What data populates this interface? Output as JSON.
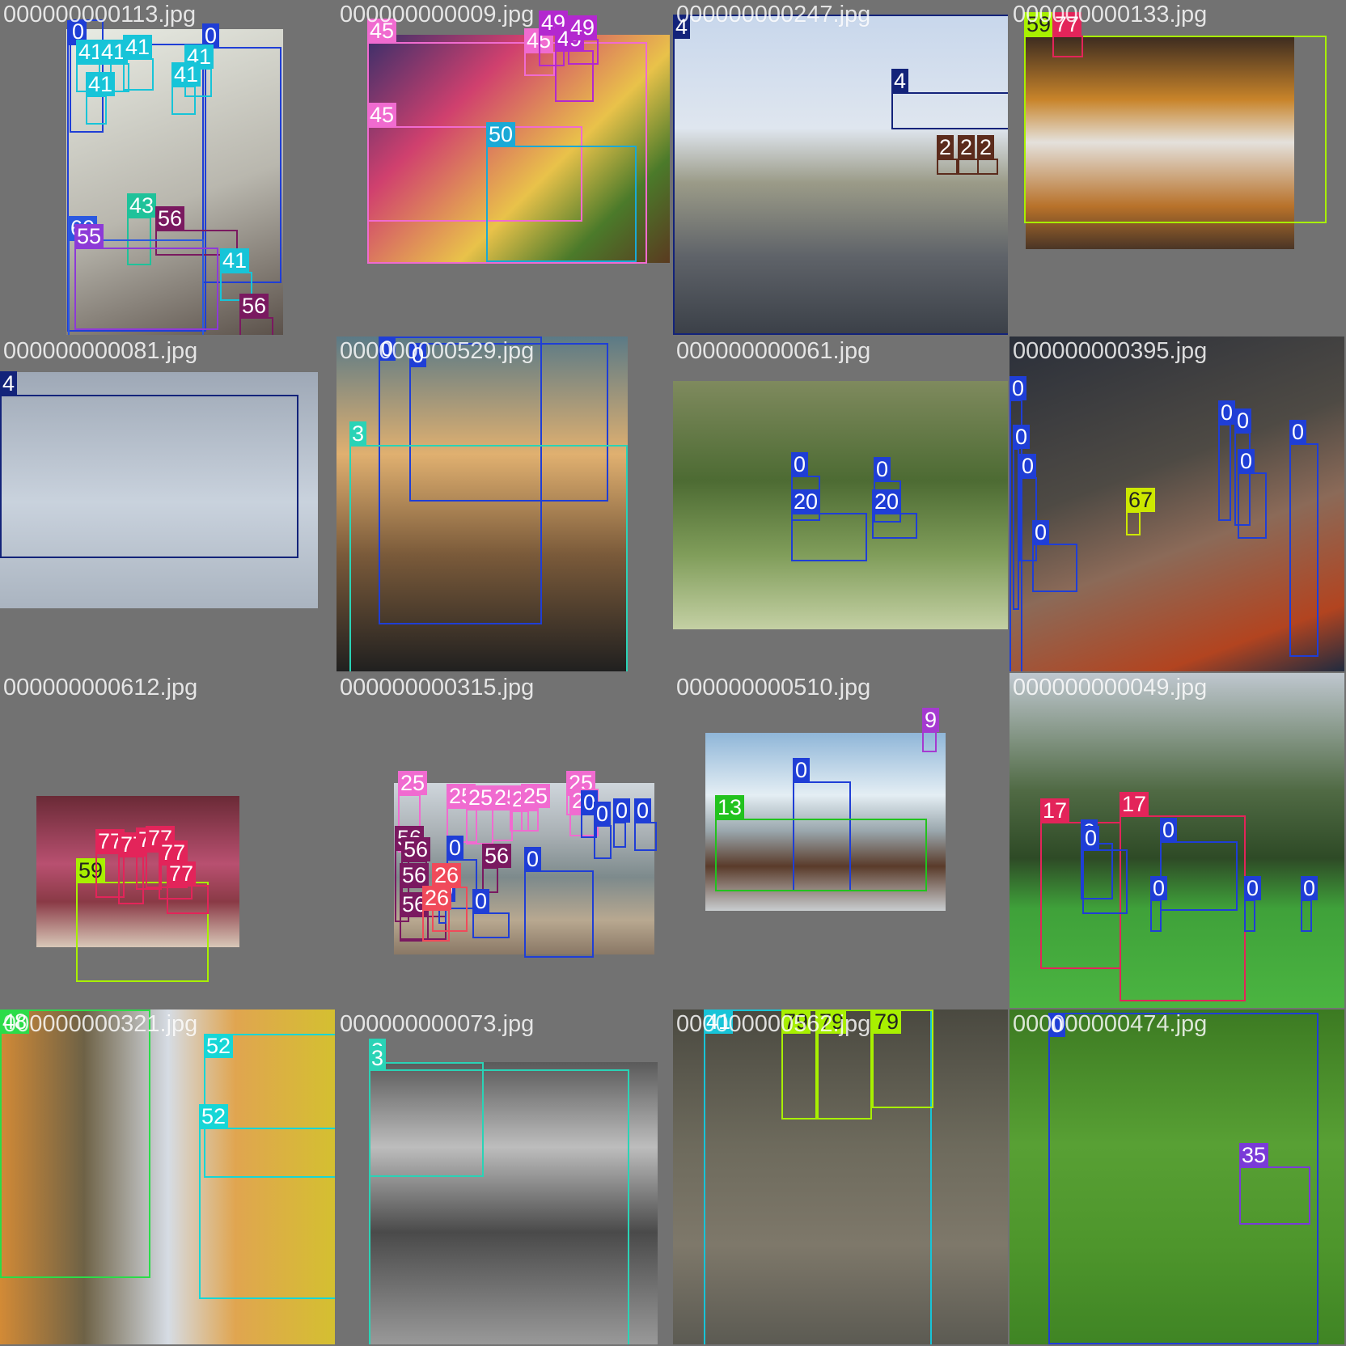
{
  "tiles": [
    {
      "file": "000000000113.jpg",
      "bg": "linear-gradient(160deg,#e9ece4,#b9b7ae 55%,#5a5049)",
      "boxes": [
        {
          "label": "0",
          "color": "#1f3ed6"
        },
        {
          "label": "0",
          "color": "#1f3ed6"
        },
        {
          "label": "0",
          "color": "#1f3ed6"
        },
        {
          "label": "41",
          "color": "#17c4d8"
        },
        {
          "label": "41",
          "color": "#17c4d8"
        },
        {
          "label": "41",
          "color": "#17c4d8"
        },
        {
          "label": "41",
          "color": "#17c4d8"
        },
        {
          "label": "41",
          "color": "#17c4d8"
        },
        {
          "label": "41",
          "color": "#17c4d8"
        },
        {
          "label": "43",
          "color": "#1fc29a"
        },
        {
          "label": "56",
          "color": "#7a1960"
        },
        {
          "label": "60",
          "color": "#2a58e0"
        },
        {
          "label": "55",
          "color": "#8d3ad7"
        },
        {
          "label": "41",
          "color": "#17c4d8"
        },
        {
          "label": "56",
          "color": "#7a1960"
        }
      ]
    },
    {
      "file": "000000000009.jpg",
      "bg": "linear-gradient(135deg,#3a2f6a,#d0406e 30%,#e9c24a 60%,#4b7a2a 80%,#5a3a20)",
      "boxes": [
        {
          "label": "45",
          "color": "#f06bd0"
        },
        {
          "label": "45",
          "color": "#f06bd0"
        },
        {
          "label": "45",
          "color": "#f06bd0"
        },
        {
          "label": "49",
          "color": "#b328cf"
        },
        {
          "label": "49",
          "color": "#b328cf"
        },
        {
          "label": "49",
          "color": "#b328cf"
        },
        {
          "label": "50",
          "color": "#1aa9d6"
        }
      ]
    },
    {
      "file": "000000000247.jpg",
      "bg": "linear-gradient(180deg,#c8d7ec 0%,#dfe6ef 35%,#9b9b88 52%,#5f6369 75%,#3a3f47)",
      "boxes": [
        {
          "label": "4",
          "color": "#13237a"
        },
        {
          "label": "4",
          "color": "#13237a"
        },
        {
          "label": "2",
          "color": "#5b2b1c"
        },
        {
          "label": "2",
          "color": "#5b2b1c"
        },
        {
          "label": "2",
          "color": "#5b2b1c"
        }
      ]
    },
    {
      "file": "000000000133.jpg",
      "bg": "linear-gradient(180deg,#3a2a20,#c8842a 30%,#e4e1dc 50%,#b8722a 80%,#4a3526)",
      "boxes": [
        {
          "label": "59",
          "color": "#a8f000"
        },
        {
          "label": "77",
          "color": "#e3245a"
        }
      ]
    },
    {
      "file": "000000000081.jpg",
      "bg": "linear-gradient(180deg,#9ea8b6,#c9d2dd 55%,#aab4c0)",
      "boxes": [
        {
          "label": "4",
          "color": "#13237a"
        }
      ]
    },
    {
      "file": "000000000529.jpg",
      "bg": "linear-gradient(180deg,#5b7a86,#e0b070 35%,#7a5a3a 65%,#1f1f1f)",
      "boxes": [
        {
          "label": "0",
          "color": "#1f3ed6"
        },
        {
          "label": "0",
          "color": "#1f3ed6"
        },
        {
          "label": "3",
          "color": "#2ad3b6"
        }
      ]
    },
    {
      "file": "000000000061.jpg",
      "bg": "linear-gradient(180deg,#7f8a5e,#4d6b33 40%,#809d5a 70%,#c4d0a4)",
      "boxes": [
        {
          "label": "0",
          "color": "#1f3ed6"
        },
        {
          "label": "0",
          "color": "#1f3ed6"
        },
        {
          "label": "20",
          "color": "#1f3ed6"
        },
        {
          "label": "20",
          "color": "#1f3ed6"
        }
      ]
    },
    {
      "file": "000000000395.jpg",
      "bg": "linear-gradient(160deg,#2a2f3a,#4e4a44 40%,#8b6a58 60%,#b24420 85%,#1b2a40)",
      "boxes": [
        {
          "label": "0",
          "color": "#1f3ed6"
        },
        {
          "label": "0",
          "color": "#1f3ed6"
        },
        {
          "label": "0",
          "color": "#1f3ed6"
        },
        {
          "label": "0",
          "color": "#1f3ed6"
        },
        {
          "label": "0",
          "color": "#1f3ed6"
        },
        {
          "label": "0",
          "color": "#1f3ed6"
        },
        {
          "label": "0",
          "color": "#1f3ed6"
        },
        {
          "label": "0",
          "color": "#1f3ed6"
        },
        {
          "label": "67",
          "color": "#cde800"
        }
      ]
    },
    {
      "file": "000000000612.jpg",
      "bg": "linear-gradient(180deg,#6a2a36,#b85070 45%,#8a3a46 70%,#d8c8b8)",
      "boxes": [
        {
          "label": "59",
          "color": "#a8f000"
        },
        {
          "label": "77",
          "color": "#e3245a"
        },
        {
          "label": "77",
          "color": "#e3245a"
        },
        {
          "label": "77",
          "color": "#e3245a"
        },
        {
          "label": "77",
          "color": "#e3245a"
        },
        {
          "label": "77",
          "color": "#e3245a"
        },
        {
          "label": "77",
          "color": "#e3245a"
        }
      ]
    },
    {
      "file": "000000000315.jpg",
      "bg": "linear-gradient(180deg,#cfd6dc,#a9b0b4 30%,#7d8a8c 55%,#b8a890 80%,#8a7866)",
      "boxes": [
        {
          "label": "25",
          "color": "#f06bd0"
        },
        {
          "label": "25",
          "color": "#f06bd0"
        },
        {
          "label": "25",
          "color": "#f06bd0"
        },
        {
          "label": "25",
          "color": "#f06bd0"
        },
        {
          "label": "25",
          "color": "#f06bd0"
        },
        {
          "label": "25",
          "color": "#f06bd0"
        },
        {
          "label": "25",
          "color": "#f06bd0"
        },
        {
          "label": "25",
          "color": "#f06bd0"
        },
        {
          "label": "56",
          "color": "#7a1960"
        },
        {
          "label": "56",
          "color": "#7a1960"
        },
        {
          "label": "56",
          "color": "#7a1960"
        },
        {
          "label": "56",
          "color": "#7a1960"
        },
        {
          "label": "56",
          "color": "#7a1960"
        },
        {
          "label": "0",
          "color": "#1f3ed6"
        },
        {
          "label": "0",
          "color": "#1f3ed6"
        },
        {
          "label": "0",
          "color": "#1f3ed6"
        },
        {
          "label": "0",
          "color": "#1f3ed6"
        },
        {
          "label": "0",
          "color": "#1f3ed6"
        },
        {
          "label": "0",
          "color": "#1f3ed6"
        },
        {
          "label": "0",
          "color": "#1f3ed6"
        },
        {
          "label": "0",
          "color": "#1f3ed6"
        },
        {
          "label": "26",
          "color": "#f04a5a"
        },
        {
          "label": "26",
          "color": "#f04a5a"
        }
      ]
    },
    {
      "file": "000000000510.jpg",
      "bg": "linear-gradient(180deg,#8fb6d8,#e4eef4 35%,#9aa7ad 55%,#5a3b2a 75%,#c9cdd0)",
      "boxes": [
        {
          "label": "9",
          "color": "#a53ad0"
        },
        {
          "label": "0",
          "color": "#1f3ed6"
        },
        {
          "label": "13",
          "color": "#22c21e"
        }
      ]
    },
    {
      "file": "000000000049.jpg",
      "bg": "linear-gradient(180deg,#bfc7cf,#506a44 35%,#2e4a26 55%,#3fa13a 70%,#4bb541)",
      "boxes": [
        {
          "label": "17",
          "color": "#e3245a"
        },
        {
          "label": "17",
          "color": "#e3245a"
        },
        {
          "label": "0",
          "color": "#1f3ed6"
        },
        {
          "label": "0",
          "color": "#1f3ed6"
        },
        {
          "label": "0",
          "color": "#1f3ed6"
        },
        {
          "label": "0",
          "color": "#1f3ed6"
        },
        {
          "label": "0",
          "color": "#1f3ed6"
        },
        {
          "label": "0",
          "color": "#1f3ed6"
        }
      ]
    },
    {
      "file": "000000000321.jpg",
      "bg": "linear-gradient(90deg,#d28a36,#6e6246 25%,#d6dce4 50%,#e0a550 70%,#d4c030)",
      "boxes": [
        {
          "label": "48",
          "color": "#2bdc49"
        },
        {
          "label": "52",
          "color": "#17d6d6"
        },
        {
          "label": "52",
          "color": "#17d6d6"
        }
      ]
    },
    {
      "file": "000000000073.jpg",
      "bg": "linear-gradient(180deg,#5a5a5a,#bdbdbd 30%,#4a4a4a 60%,#9a9a9a)",
      "boxes": [
        {
          "label": "3",
          "color": "#2ad3b6"
        },
        {
          "label": "3",
          "color": "#2ad3b6"
        }
      ]
    },
    {
      "file": "000000000562.jpg",
      "bg": "linear-gradient(180deg,#4a4940,#6d6a5c 40%,#7e786a 70%,#5b5a52)",
      "boxes": [
        {
          "label": "41",
          "color": "#17c4d8"
        },
        {
          "label": "79",
          "color": "#a8f000"
        },
        {
          "label": "79",
          "color": "#a8f000"
        },
        {
          "label": "79",
          "color": "#a8f000"
        }
      ]
    },
    {
      "file": "000000000474.jpg",
      "bg": "linear-gradient(180deg,#3c7a22,#58a034 40%,#4e962c 70%,#3f8424)",
      "boxes": [
        {
          "label": "0",
          "color": "#1f3ed6"
        },
        {
          "label": "35",
          "color": "#7a3ad8"
        }
      ]
    }
  ]
}
